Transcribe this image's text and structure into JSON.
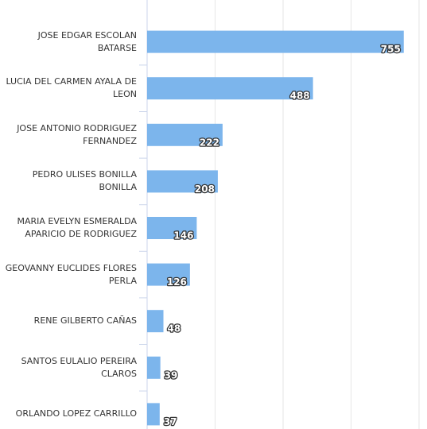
{
  "chart_data": {
    "type": "bar",
    "orientation": "horizontal",
    "categories": [
      "JOSE EDGAR ESCOLAN BATARSE",
      "LUCIA DEL CARMEN AYALA DE LEON",
      "JOSE ANTONIO RODRIGUEZ FERNANDEZ",
      "PEDRO ULISES BONILLA BONILLA",
      "MARIA EVELYN ESMERALDA APARICIO DE RODRIGUEZ",
      "GEOVANNY EUCLIDES FLORES PERLA",
      "RENE GILBERTO CAÑAS",
      "SANTOS EULALIO PEREIRA CLAROS",
      "ORLANDO LOPEZ CARRILLO"
    ],
    "values": [
      755,
      488,
      222,
      208,
      146,
      126,
      48,
      39,
      37
    ],
    "color": "#7cb5ec",
    "xlim": [
      0,
      800
    ],
    "xticks": [
      0,
      200,
      400,
      600,
      800
    ],
    "grid": true
  }
}
